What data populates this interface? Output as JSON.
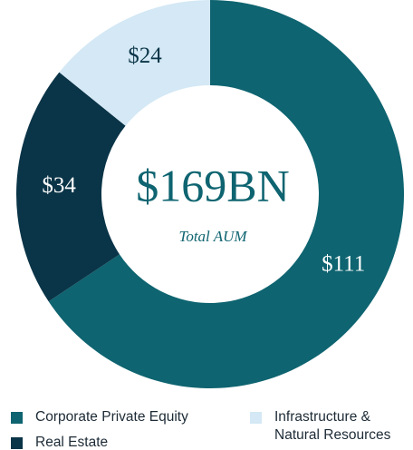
{
  "chart_data": {
    "type": "pie",
    "donut": true,
    "categories": [
      "Corporate Private Equity",
      "Real Estate",
      "Infrastructure & Natural Resources"
    ],
    "values": [
      111,
      34,
      24
    ],
    "value_labels": [
      "$111",
      "$34",
      "$24"
    ],
    "colors": [
      "#0e6470",
      "#0a3447",
      "#d4e8f5"
    ],
    "center_text": "$169BN",
    "center_subtext": "Total AUM"
  }
}
